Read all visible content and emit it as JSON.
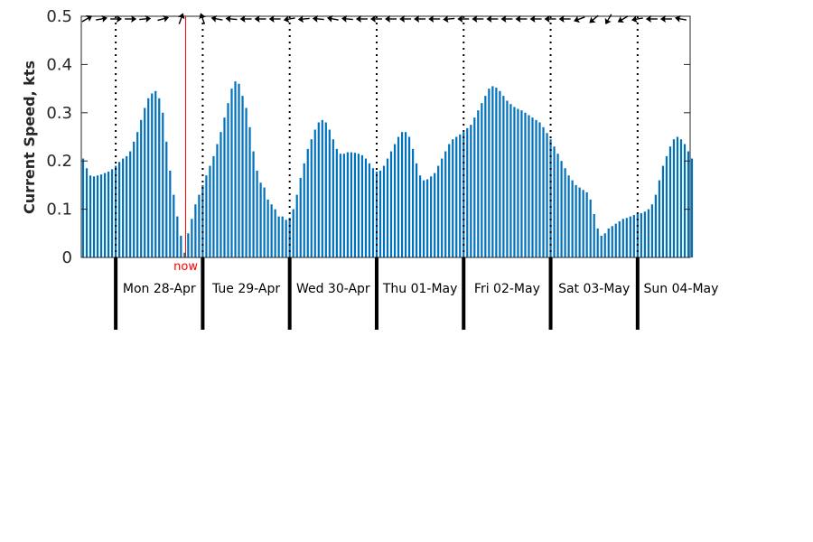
{
  "chart_data": {
    "type": "bar",
    "title": "",
    "xlabel": "",
    "ylabel": "Current Speed, kts",
    "ylim": [
      0,
      0.5
    ],
    "yticks": [
      0,
      0.1,
      0.2,
      0.3,
      0.4,
      0.5
    ],
    "ytick_labels": [
      "0",
      "0.1",
      "0.2",
      "0.3",
      "0.4",
      "0.5"
    ],
    "xlim_hours": [
      -9.5,
      158.5
    ],
    "step_hours": 1,
    "start_hour": -9,
    "day_labels": [
      "Mon 28-Apr",
      "Tue 29-Apr",
      "Wed 30-Apr",
      "Thu 01-May",
      "Fri 02-May",
      "Sat 03-May",
      "Sun 04-May"
    ],
    "now_label": "now",
    "now_hour": 19.3,
    "colors": {
      "bar": "#0072BD",
      "now": "#FF0000",
      "axis": "#262626",
      "arrow": "#000000"
    },
    "direction_arrows": "flow-direction-arrows",
    "values": [
      0.205,
      0.185,
      0.17,
      0.168,
      0.17,
      0.172,
      0.175,
      0.178,
      0.183,
      0.19,
      0.198,
      0.205,
      0.21,
      0.22,
      0.24,
      0.26,
      0.285,
      0.31,
      0.33,
      0.34,
      0.345,
      0.33,
      0.3,
      0.24,
      0.18,
      0.13,
      0.085,
      0.045,
      0.01,
      0.05,
      0.08,
      0.11,
      0.13,
      0.15,
      0.17,
      0.19,
      0.21,
      0.235,
      0.26,
      0.29,
      0.32,
      0.35,
      0.365,
      0.36,
      0.335,
      0.31,
      0.27,
      0.22,
      0.18,
      0.155,
      0.145,
      0.12,
      0.11,
      0.1,
      0.085,
      0.085,
      0.078,
      0.082,
      0.1,
      0.13,
      0.165,
      0.195,
      0.225,
      0.245,
      0.265,
      0.28,
      0.285,
      0.28,
      0.265,
      0.245,
      0.225,
      0.215,
      0.215,
      0.218,
      0.218,
      0.217,
      0.215,
      0.212,
      0.205,
      0.195,
      0.185,
      0.178,
      0.18,
      0.19,
      0.205,
      0.22,
      0.235,
      0.25,
      0.26,
      0.26,
      0.25,
      0.225,
      0.195,
      0.17,
      0.16,
      0.162,
      0.168,
      0.175,
      0.19,
      0.205,
      0.22,
      0.235,
      0.245,
      0.25,
      0.255,
      0.26,
      0.268,
      0.275,
      0.29,
      0.305,
      0.32,
      0.335,
      0.35,
      0.355,
      0.352,
      0.345,
      0.335,
      0.325,
      0.318,
      0.312,
      0.308,
      0.305,
      0.3,
      0.295,
      0.29,
      0.285,
      0.28,
      0.27,
      0.258,
      0.245,
      0.23,
      0.215,
      0.2,
      0.185,
      0.17,
      0.16,
      0.15,
      0.145,
      0.14,
      0.135,
      0.12,
      0.09,
      0.06,
      0.045,
      0.05,
      0.06,
      0.065,
      0.07,
      0.075,
      0.08,
      0.082,
      0.085,
      0.088,
      0.09,
      0.092,
      0.095,
      0.1,
      0.11,
      0.13,
      0.16,
      0.19,
      0.21,
      0.23,
      0.245,
      0.25,
      0.245,
      0.235,
      0.22,
      0.205
    ],
    "arrows": [
      {
        "hour": -8,
        "angle": 150
      },
      {
        "hour": -4,
        "angle": 170
      },
      {
        "hour": 0,
        "angle": 180
      },
      {
        "hour": 4,
        "angle": 180
      },
      {
        "hour": 8,
        "angle": 175
      },
      {
        "hour": 13,
        "angle": 165
      },
      {
        "hour": 18,
        "angle": 110
      },
      {
        "hour": 24,
        "angle": 70
      },
      {
        "hour": 28,
        "angle": 10
      },
      {
        "hour": 32,
        "angle": 5
      },
      {
        "hour": 36,
        "angle": 0
      },
      {
        "hour": 40,
        "angle": 0
      },
      {
        "hour": 44,
        "angle": 0
      },
      {
        "hour": 48,
        "angle": 350
      },
      {
        "hour": 52,
        "angle": 355
      },
      {
        "hour": 56,
        "angle": 5
      },
      {
        "hour": 60,
        "angle": 10
      },
      {
        "hour": 64,
        "angle": 5
      },
      {
        "hour": 68,
        "angle": 0
      },
      {
        "hour": 72,
        "angle": 0
      },
      {
        "hour": 76,
        "angle": 0
      },
      {
        "hour": 80,
        "angle": 0
      },
      {
        "hour": 84,
        "angle": 0
      },
      {
        "hour": 88,
        "angle": 0
      },
      {
        "hour": 92,
        "angle": 355
      },
      {
        "hour": 96,
        "angle": 0
      },
      {
        "hour": 100,
        "angle": 0
      },
      {
        "hour": 104,
        "angle": 0
      },
      {
        "hour": 108,
        "angle": 0
      },
      {
        "hour": 112,
        "angle": 0
      },
      {
        "hour": 116,
        "angle": 0
      },
      {
        "hour": 120,
        "angle": 0
      },
      {
        "hour": 124,
        "angle": 0
      },
      {
        "hour": 128,
        "angle": 340
      },
      {
        "hour": 132,
        "angle": 320
      },
      {
        "hour": 136,
        "angle": 300
      },
      {
        "hour": 140,
        "angle": 330
      },
      {
        "hour": 144,
        "angle": 350
      },
      {
        "hour": 148,
        "angle": 0
      },
      {
        "hour": 152,
        "angle": 0
      },
      {
        "hour": 156,
        "angle": 10
      }
    ]
  }
}
